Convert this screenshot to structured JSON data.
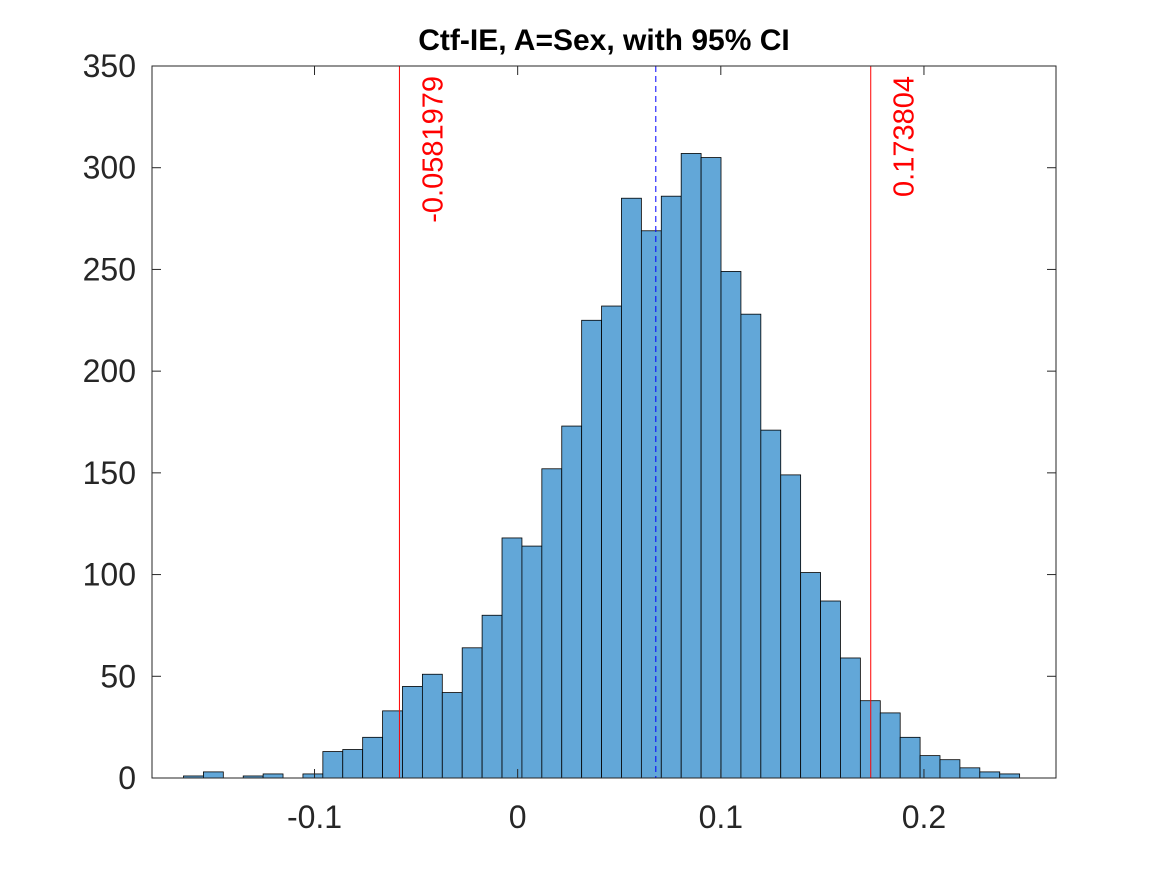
{
  "chart_data": {
    "type": "bar",
    "title": "Ctf-IE, A=Sex, with 95% CI",
    "xlabel": "",
    "ylabel": "",
    "xlim": [
      -0.18,
      0.265
    ],
    "ylim": [
      0,
      350
    ],
    "grid": false,
    "bin_width": 0.0098,
    "bin_left_edges": [
      -0.1645,
      -0.1547,
      -0.1449,
      -0.1351,
      -0.1253,
      -0.1155,
      -0.1057,
      -0.0959,
      -0.0861,
      -0.0763,
      -0.0665,
      -0.0567,
      -0.0469,
      -0.0371,
      -0.0273,
      -0.0175,
      -0.0077,
      0.0021,
      0.0119,
      0.0217,
      0.0315,
      0.0413,
      0.0511,
      0.0609,
      0.0707,
      0.0805,
      0.0903,
      0.1001,
      0.1099,
      0.1197,
      0.1295,
      0.1393,
      0.1491,
      0.1589,
      0.1687,
      0.1785,
      0.1883,
      0.1981,
      0.2079,
      0.2177,
      0.2275,
      0.2373
    ],
    "counts": [
      1,
      3,
      0,
      1,
      2,
      0,
      2,
      13,
      14,
      20,
      33,
      45,
      51,
      42,
      64,
      80,
      118,
      114,
      152,
      173,
      225,
      232,
      285,
      269,
      286,
      307,
      305,
      249,
      228,
      171,
      149,
      101,
      87,
      59,
      38,
      32,
      20,
      11,
      9,
      5,
      3,
      2
    ],
    "bar_color": "#62a7d8",
    "mean_line": {
      "x": 0.068,
      "color": "#0000ff",
      "style": "dashed"
    },
    "ci_lines": [
      {
        "x": -0.0581979,
        "label": "-0.0581979",
        "color": "#ff0000"
      },
      {
        "x": 0.173804,
        "label": "0.173804",
        "color": "#ff0000"
      }
    ],
    "xticks": [
      {
        "value": -0.1,
        "label": "-0.1"
      },
      {
        "value": 0,
        "label": "0"
      },
      {
        "value": 0.1,
        "label": "0.1"
      },
      {
        "value": 0.2,
        "label": "0.2"
      }
    ],
    "yticks": [
      {
        "value": 0,
        "label": "0"
      },
      {
        "value": 50,
        "label": "50"
      },
      {
        "value": 100,
        "label": "100"
      },
      {
        "value": 150,
        "label": "150"
      },
      {
        "value": 200,
        "label": "200"
      },
      {
        "value": 250,
        "label": "250"
      },
      {
        "value": 300,
        "label": "300"
      },
      {
        "value": 350,
        "label": "350"
      }
    ]
  }
}
